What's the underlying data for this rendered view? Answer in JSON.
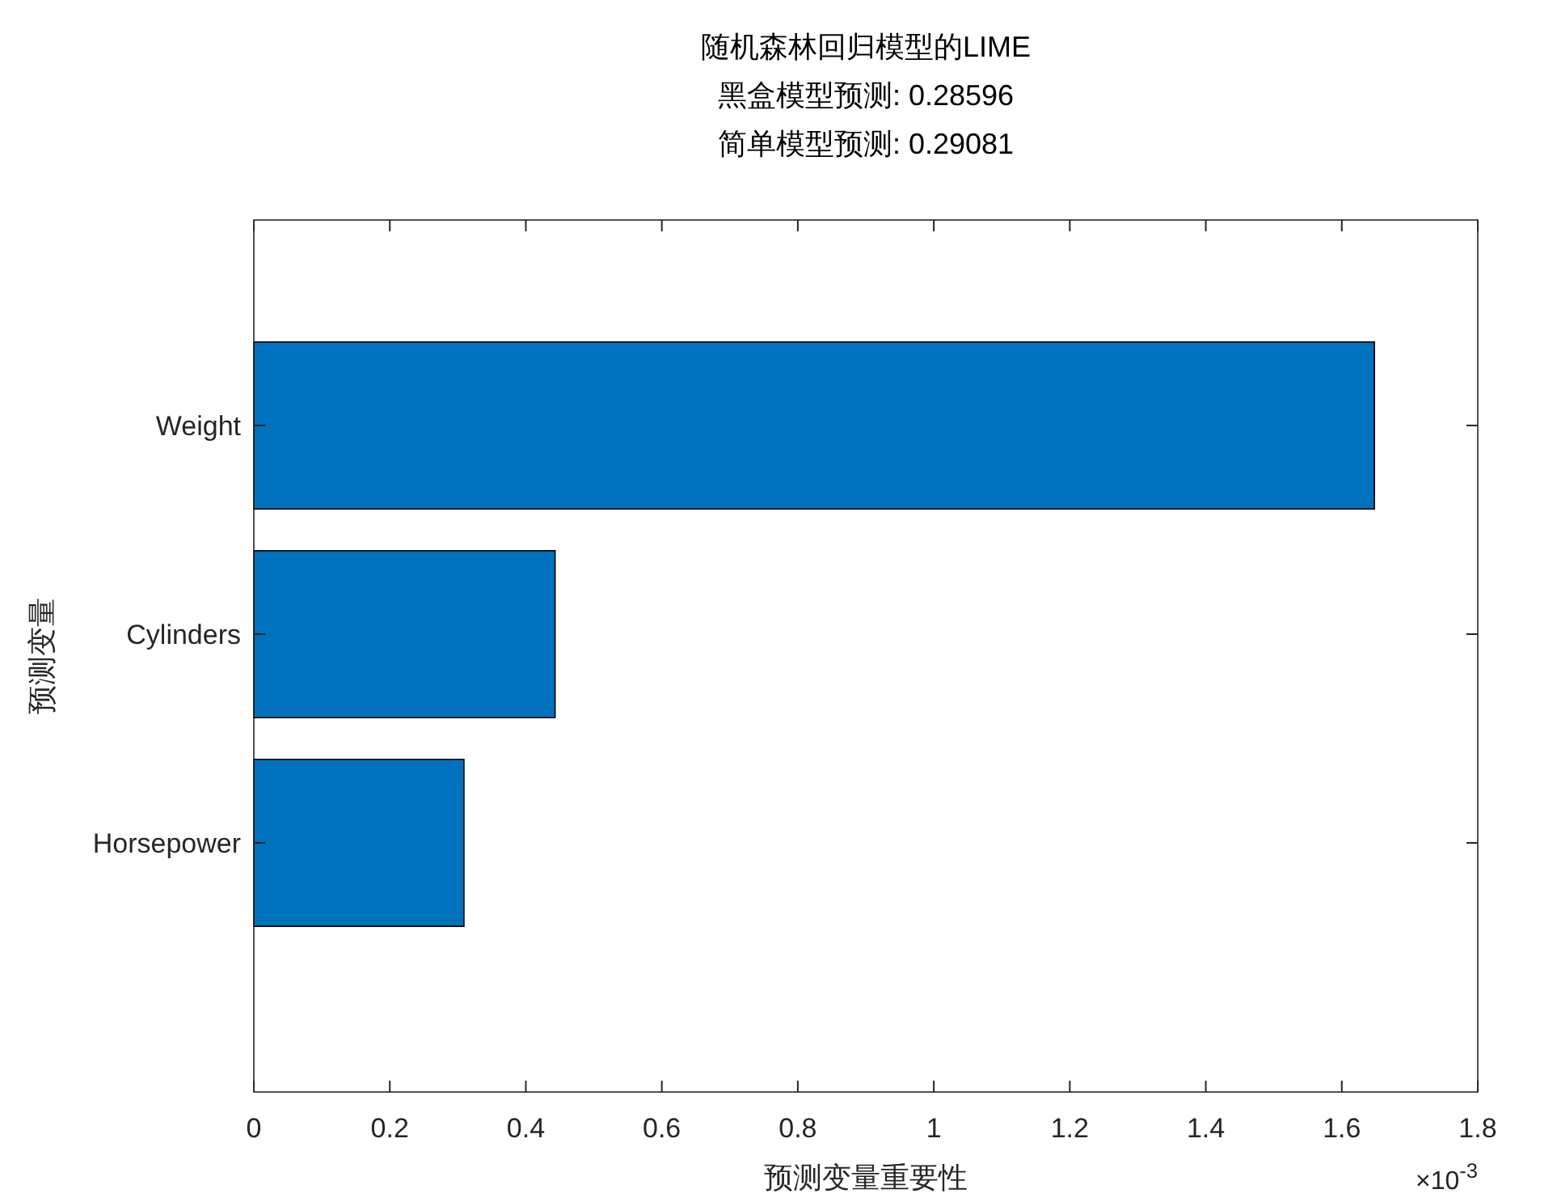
{
  "chart_data": {
    "type": "bar",
    "orientation": "horizontal",
    "title": "随机森林回归模型的LIME\n黑盒模型预测: 0.28596\n简单模型预测: 0.29081",
    "xlabel": "预测变量重要性",
    "ylabel": "预测变量",
    "categories": [
      "Weight",
      "Cylinders",
      "Horsepower"
    ],
    "values": [
      1.648,
      0.443,
      0.309
    ],
    "color": "#0072bd",
    "xlim": [
      0,
      1.8
    ],
    "xticks": [
      0,
      0.2,
      0.4,
      0.6,
      0.8,
      1,
      1.2,
      1.4,
      1.6,
      1.8
    ],
    "grid": false,
    "annotations": [
      "×10$^{-3}$"
    ]
  }
}
